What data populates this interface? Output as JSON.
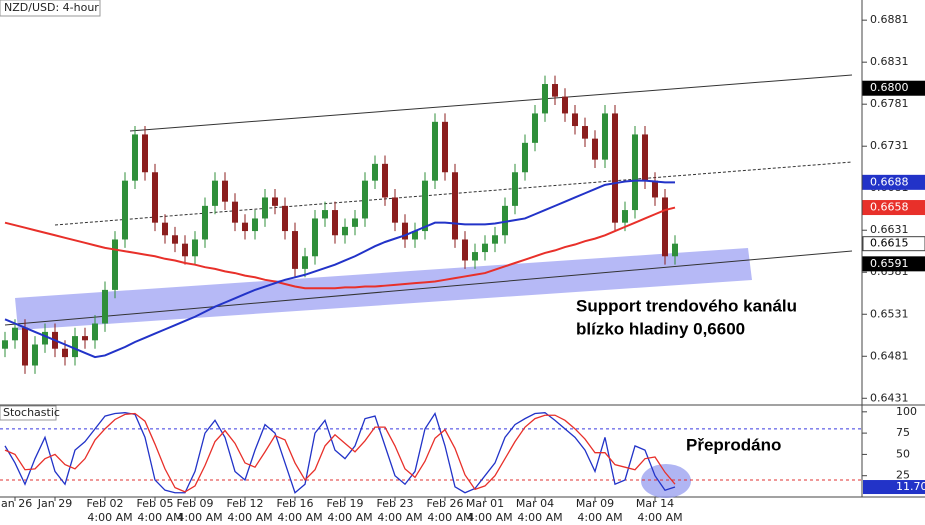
{
  "chart_data": {
    "type": "candlestick",
    "title": "NZD/USD: 4-hour",
    "categories": [
      null,
      "Jan 26",
      null,
      null,
      null,
      "Jan 29",
      null,
      null,
      null,
      null,
      "Feb 02",
      null,
      null,
      null,
      null,
      "Feb 05",
      null,
      null,
      null,
      "Feb 09",
      null,
      null,
      null,
      null,
      "Feb 12",
      null,
      null,
      null,
      null,
      "Feb 16",
      null,
      null,
      null,
      null,
      "Feb 19",
      null,
      null,
      null,
      null,
      "Feb 23",
      null,
      null,
      null,
      null,
      "Feb 26",
      null,
      null,
      null,
      "Mar 01",
      null,
      null,
      null,
      null,
      "Mar 04",
      null,
      null,
      null,
      null,
      null,
      "Mar 09",
      null,
      null,
      null,
      null,
      null,
      "Mar 14",
      null,
      null
    ],
    "sub_label": "4:00 AM",
    "open": [
      0.649,
      0.65,
      0.6515,
      0.647,
      0.6495,
      0.651,
      0.649,
      0.648,
      0.6505,
      0.65,
      0.652,
      0.656,
      0.662,
      0.669,
      0.6745,
      0.67,
      0.664,
      0.6625,
      0.6615,
      0.66,
      0.662,
      0.666,
      0.669,
      0.6665,
      0.664,
      0.663,
      0.6645,
      0.667,
      0.666,
      0.663,
      0.6585,
      0.66,
      0.6645,
      0.6655,
      0.6625,
      0.6635,
      0.6645,
      0.669,
      0.671,
      0.667,
      0.664,
      0.662,
      0.663,
      0.669,
      0.676,
      0.67,
      0.662,
      0.6595,
      0.6605,
      0.6615,
      0.6625,
      0.666,
      0.67,
      0.6735,
      0.677,
      0.6805,
      0.679,
      0.677,
      0.6755,
      0.674,
      0.6715,
      0.677,
      0.664,
      0.6655,
      0.6745,
      0.669,
      0.667,
      0.66
    ],
    "high": [
      0.651,
      0.6525,
      0.6525,
      0.6505,
      0.652,
      0.652,
      0.65,
      0.6515,
      0.6515,
      0.653,
      0.657,
      0.663,
      0.67,
      0.6755,
      0.6755,
      0.671,
      0.665,
      0.6635,
      0.6625,
      0.663,
      0.667,
      0.67,
      0.67,
      0.6675,
      0.665,
      0.6655,
      0.668,
      0.668,
      0.667,
      0.664,
      0.661,
      0.6655,
      0.6665,
      0.6665,
      0.6645,
      0.6655,
      0.67,
      0.672,
      0.672,
      0.668,
      0.665,
      0.664,
      0.67,
      0.677,
      0.677,
      0.671,
      0.663,
      0.6615,
      0.6625,
      0.6635,
      0.667,
      0.671,
      0.6745,
      0.678,
      0.6815,
      0.6815,
      0.68,
      0.678,
      0.6765,
      0.675,
      0.678,
      0.678,
      0.6665,
      0.6755,
      0.6755,
      0.67,
      0.668,
      0.6625
    ],
    "low": [
      0.648,
      0.649,
      0.646,
      0.646,
      0.6485,
      0.648,
      0.647,
      0.647,
      0.649,
      0.649,
      0.651,
      0.655,
      0.661,
      0.668,
      0.669,
      0.663,
      0.6615,
      0.6605,
      0.659,
      0.659,
      0.661,
      0.665,
      0.6655,
      0.663,
      0.662,
      0.662,
      0.6635,
      0.665,
      0.662,
      0.6575,
      0.6575,
      0.659,
      0.6635,
      0.6615,
      0.6615,
      0.6625,
      0.6635,
      0.668,
      0.666,
      0.663,
      0.661,
      0.661,
      0.662,
      0.668,
      0.669,
      0.661,
      0.6585,
      0.6585,
      0.6595,
      0.6605,
      0.6615,
      0.665,
      0.669,
      0.6725,
      0.676,
      0.678,
      0.676,
      0.6745,
      0.673,
      0.6705,
      0.6705,
      0.663,
      0.663,
      0.6645,
      0.668,
      0.666,
      0.659,
      0.659
    ],
    "close": [
      0.65,
      0.6515,
      0.647,
      0.6495,
      0.651,
      0.649,
      0.648,
      0.6505,
      0.65,
      0.652,
      0.656,
      0.662,
      0.669,
      0.6745,
      0.67,
      0.664,
      0.6625,
      0.6615,
      0.66,
      0.662,
      0.666,
      0.669,
      0.6665,
      0.664,
      0.663,
      0.6645,
      0.667,
      0.666,
      0.663,
      0.6585,
      0.66,
      0.6645,
      0.6655,
      0.6625,
      0.6635,
      0.6645,
      0.669,
      0.671,
      0.667,
      0.664,
      0.662,
      0.663,
      0.669,
      0.676,
      0.67,
      0.662,
      0.6595,
      0.6605,
      0.6615,
      0.6625,
      0.666,
      0.67,
      0.6735,
      0.677,
      0.6805,
      0.679,
      0.677,
      0.6755,
      0.674,
      0.6715,
      0.677,
      0.664,
      0.6655,
      0.6745,
      0.669,
      0.667,
      0.66,
      0.6615
    ],
    "up_color": "#2f8f3a",
    "down_color": "#8b1e1e",
    "moving_averages": [
      {
        "color": "#e8302a",
        "values": [
          0.664,
          0.6637,
          0.6634,
          0.6631,
          0.6628,
          0.6625,
          0.6622,
          0.6619,
          0.6616,
          0.6613,
          0.661,
          0.6608,
          0.6606,
          0.6604,
          0.6602,
          0.66,
          0.6597,
          0.6595,
          0.6592,
          0.659,
          0.6587,
          0.6585,
          0.6582,
          0.658,
          0.6577,
          0.6575,
          0.6572,
          0.657,
          0.6567,
          0.6564,
          0.6562,
          0.6562,
          0.6562,
          0.6562,
          0.6563,
          0.6563,
          0.6564,
          0.6564,
          0.6565,
          0.6566,
          0.6567,
          0.6568,
          0.6569,
          0.657,
          0.6572,
          0.6574,
          0.6576,
          0.6578,
          0.658,
          0.6584,
          0.6588,
          0.6592,
          0.6596,
          0.66,
          0.6604,
          0.6607,
          0.6611,
          0.6614,
          0.6618,
          0.6621,
          0.6625,
          0.663,
          0.6635,
          0.664,
          0.6645,
          0.665,
          0.6655,
          0.6658
        ]
      },
      {
        "color": "#2233c8",
        "values": [
          0.6525,
          0.652,
          0.6515,
          0.651,
          0.6505,
          0.65,
          0.6495,
          0.649,
          0.6485,
          0.648,
          0.6482,
          0.6487,
          0.6492,
          0.6498,
          0.6503,
          0.6508,
          0.6513,
          0.6518,
          0.6523,
          0.6528,
          0.6534,
          0.654,
          0.6545,
          0.655,
          0.6555,
          0.656,
          0.6564,
          0.6568,
          0.6572,
          0.6575,
          0.6578,
          0.6582,
          0.6586,
          0.659,
          0.6595,
          0.66,
          0.6606,
          0.6612,
          0.6617,
          0.6621,
          0.6625,
          0.663,
          0.6635,
          0.664,
          0.664,
          0.6639,
          0.6638,
          0.6638,
          0.6638,
          0.6639,
          0.6641,
          0.6643,
          0.6645,
          0.665,
          0.6655,
          0.666,
          0.6665,
          0.667,
          0.6675,
          0.668,
          0.6685,
          0.6687,
          0.6689,
          0.669,
          0.669,
          0.6689,
          0.6688,
          0.6688
        ]
      }
    ],
    "ylim": [
      0.6905,
      0.6423
    ],
    "yticks": [
      0.6431,
      0.6481,
      0.6531,
      0.6581,
      0.6631,
      0.6681,
      0.6731,
      0.6781,
      0.6831,
      0.6881
    ],
    "price_labels": [
      {
        "value": 0.68,
        "label": "0.6800",
        "color": "#000000"
      },
      {
        "value": 0.6688,
        "label": "0.6688",
        "color": "#2233c8"
      },
      {
        "value": 0.6658,
        "label": "0.6658",
        "color": "#e8302a"
      },
      {
        "value": 0.6615,
        "label": "0.6615",
        "color": "#ffffff"
      },
      {
        "value": 0.6591,
        "label": "0.6591",
        "color": "#000000"
      }
    ],
    "annotations": {
      "support": [
        "Support trendového kanálu",
        "blízko hladiny 0,6600"
      ],
      "oversold": "Přeprodáno"
    },
    "indicator": {
      "title": "Stochastic",
      "ylim": [
        0,
        108
      ],
      "yticks": [
        25,
        50,
        75,
        100
      ],
      "levels": [
        20,
        80
      ],
      "series": [
        {
          "color": "#2233c8",
          "values": [
            60,
            40,
            15,
            45,
            70,
            30,
            15,
            55,
            65,
            80,
            95,
            98,
            99,
            97,
            70,
            20,
            8,
            5,
            5,
            30,
            75,
            90,
            70,
            30,
            20,
            55,
            85,
            75,
            40,
            5,
            15,
            75,
            90,
            55,
            45,
            60,
            92,
            95,
            60,
            25,
            15,
            30,
            80,
            98,
            60,
            12,
            5,
            10,
            25,
            40,
            70,
            85,
            92,
            98,
            99,
            90,
            80,
            70,
            55,
            30,
            70,
            15,
            20,
            60,
            55,
            25,
            8,
            11.7
          ]
        },
        {
          "color": "#e8302a",
          "values": [
            55,
            50,
            32,
            33,
            45,
            50,
            38,
            33,
            45,
            67,
            80,
            91,
            97,
            98,
            89,
            62,
            33,
            11,
            6,
            13,
            37,
            65,
            78,
            63,
            40,
            35,
            53,
            72,
            67,
            40,
            20,
            32,
            60,
            73,
            63,
            53,
            66,
            82,
            82,
            60,
            33,
            23,
            42,
            69,
            79,
            57,
            26,
            9,
            13,
            25,
            45,
            65,
            82,
            92,
            96,
            96,
            90,
            80,
            68,
            52,
            52,
            38,
            35,
            32,
            45,
            47,
            29,
            15
          ]
        }
      ],
      "last_label": {
        "value": 11.7,
        "label": "11.70"
      }
    }
  }
}
